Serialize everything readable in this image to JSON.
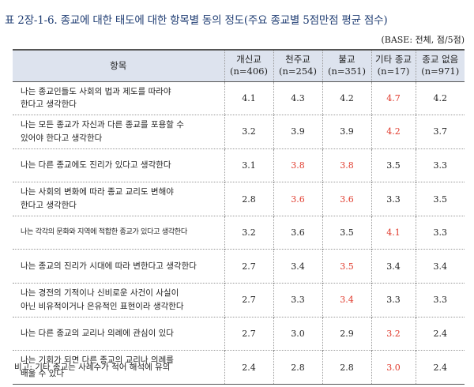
{
  "title": "표 2장-1-6. 종교에 대한 태도에 대한 항목별 동의 정도(주요 종교별 5점만점 평균 점수)",
  "base": "(BASE: 전체, 점/5점)",
  "table": {
    "headers": {
      "item": "항목",
      "c1": {
        "name": "개신교",
        "n": "(n=406)"
      },
      "c2": {
        "name": "천주교",
        "n": "(n=254)"
      },
      "c3": {
        "name": "불교",
        "n": "(n=351)"
      },
      "c4": {
        "name": "기타 종교",
        "n": "(n=17)"
      },
      "c5": {
        "name": "종교 없음",
        "n": "(n=971)"
      }
    },
    "rows": [
      {
        "item": [
          "나는 종교인들도 사회의 법과 제도를 따라야",
          "한다고 생각한다"
        ],
        "values": [
          "4.1",
          "4.3",
          "4.2",
          "4.7",
          "4.2"
        ],
        "highlight": [
          false,
          false,
          false,
          true,
          false
        ]
      },
      {
        "item": [
          "나는 모든 종교가  자신과 다른 종교를 포용할 수",
          "있어야 한다고 생각한다"
        ],
        "values": [
          "3.2",
          "3.9",
          "3.9",
          "4.2",
          "3.7"
        ],
        "highlight": [
          false,
          false,
          false,
          true,
          false
        ]
      },
      {
        "item": [
          "나는 다른 종교에도 진리가 있다고 생각한다"
        ],
        "values": [
          "3.1",
          "3.8",
          "3.8",
          "3.5",
          "3.3"
        ],
        "highlight": [
          false,
          true,
          true,
          false,
          false
        ]
      },
      {
        "item": [
          "나는 사회의 변화에 따라 종교 교리도 변해야",
          "한다고 생각한다"
        ],
        "values": [
          "2.8",
          "3.6",
          "3.6",
          "3.3",
          "3.5"
        ],
        "highlight": [
          false,
          true,
          true,
          false,
          false
        ]
      },
      {
        "item": [
          "나는 각각의 문화와 지역에 적합한 종교가 있다고 생각한다"
        ],
        "values": [
          "3.2",
          "3.6",
          "3.5",
          "4.1",
          "3.3"
        ],
        "highlight": [
          false,
          false,
          false,
          true,
          false
        ]
      },
      {
        "item": [
          "나는 종교의 진리가 시대에 따라 변한다고 생각한다"
        ],
        "values": [
          "2.7",
          "3.4",
          "3.5",
          "3.4",
          "3.4"
        ],
        "highlight": [
          false,
          false,
          true,
          false,
          false
        ]
      },
      {
        "item": [
          "나는 경전의 기적이나 신비로운 사건이 사실이",
          "아닌 비유적이거나 은유적인 표현이라 생각한다"
        ],
        "values": [
          "2.7",
          "3.3",
          "3.4",
          "3.3",
          "3.3"
        ],
        "highlight": [
          false,
          false,
          true,
          false,
          false
        ]
      },
      {
        "item": [
          "나는 다른 종교의 교리나 의례에 관심이 있다"
        ],
        "values": [
          "2.7",
          "3.0",
          "2.9",
          "3.2",
          "2.4"
        ],
        "highlight": [
          false,
          false,
          false,
          true,
          false
        ]
      },
      {
        "item": [
          "나는 기회가 되면 다른 종교의 교리나 의례를",
          "배울 수 있다"
        ],
        "values": [
          "2.4",
          "2.8",
          "2.8",
          "3.0",
          "2.4"
        ],
        "highlight": [
          false,
          false,
          false,
          true,
          false
        ]
      }
    ]
  },
  "note": "비고: 기타 종교는 사례수가 적어 해석에 유의",
  "colors": {
    "title": "#1f3d73",
    "highlight": "#e0392b",
    "header_bg": "#dde3ee"
  }
}
